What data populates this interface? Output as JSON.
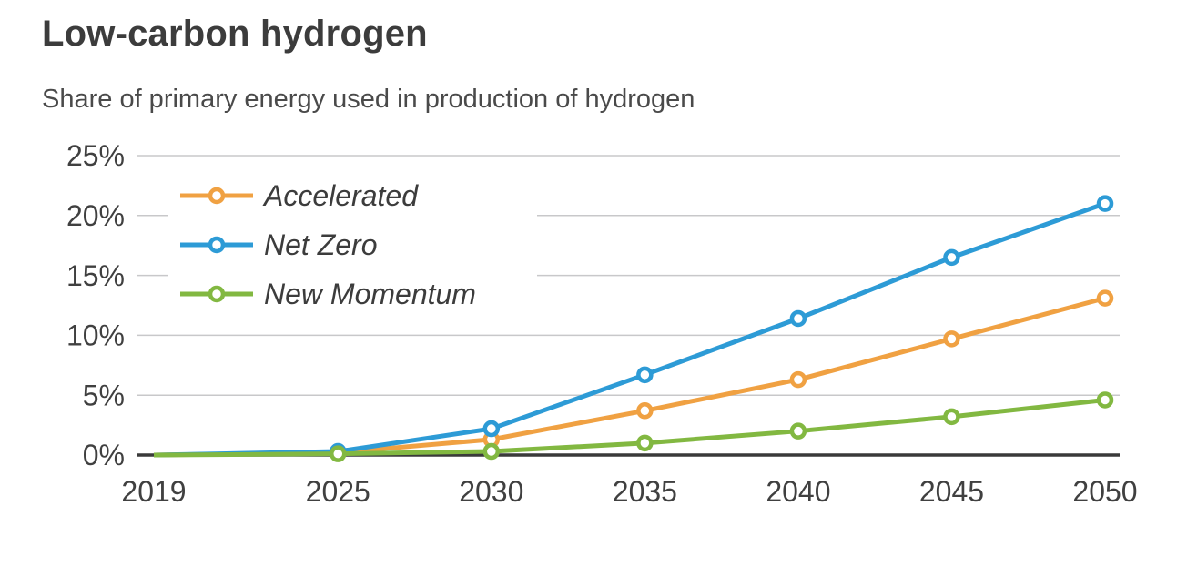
{
  "chart_data": {
    "type": "line",
    "title": "Low-carbon hydrogen",
    "subtitle": "Share of primary energy used in production of hydrogen",
    "x": [
      2019,
      2025,
      2030,
      2035,
      2040,
      2045,
      2050
    ],
    "x_tick_labels": [
      "2019",
      "2025",
      "2030",
      "2035",
      "2040",
      "2045",
      "2050"
    ],
    "xlim": [
      2019,
      2050
    ],
    "y_ticks": [
      0,
      5,
      10,
      15,
      20,
      25
    ],
    "y_tick_suffix": "%",
    "ylim": [
      0,
      25
    ],
    "grid": "horizontal-only",
    "legend_position": "inside-top-left",
    "marker_style": "open-circle",
    "series": [
      {
        "name": "Accelerated",
        "color": "#F0A142",
        "values": [
          0,
          0.2,
          1.3,
          3.7,
          6.3,
          9.7,
          13.1
        ]
      },
      {
        "name": "Net Zero",
        "color": "#2D9BD6",
        "values": [
          0,
          0.3,
          2.2,
          6.7,
          11.4,
          16.5,
          21.0
        ]
      },
      {
        "name": "New Momentum",
        "color": "#82B841",
        "values": [
          0,
          0.1,
          0.3,
          1.0,
          2.0,
          3.2,
          4.6
        ]
      }
    ],
    "colors": {
      "title": "#3C3C3C",
      "subtitle": "#4A4A4A",
      "tick": "#404040",
      "grid": "#C8C8CA",
      "axis": "#3A3A3A",
      "background": "#FFFFFF"
    }
  }
}
